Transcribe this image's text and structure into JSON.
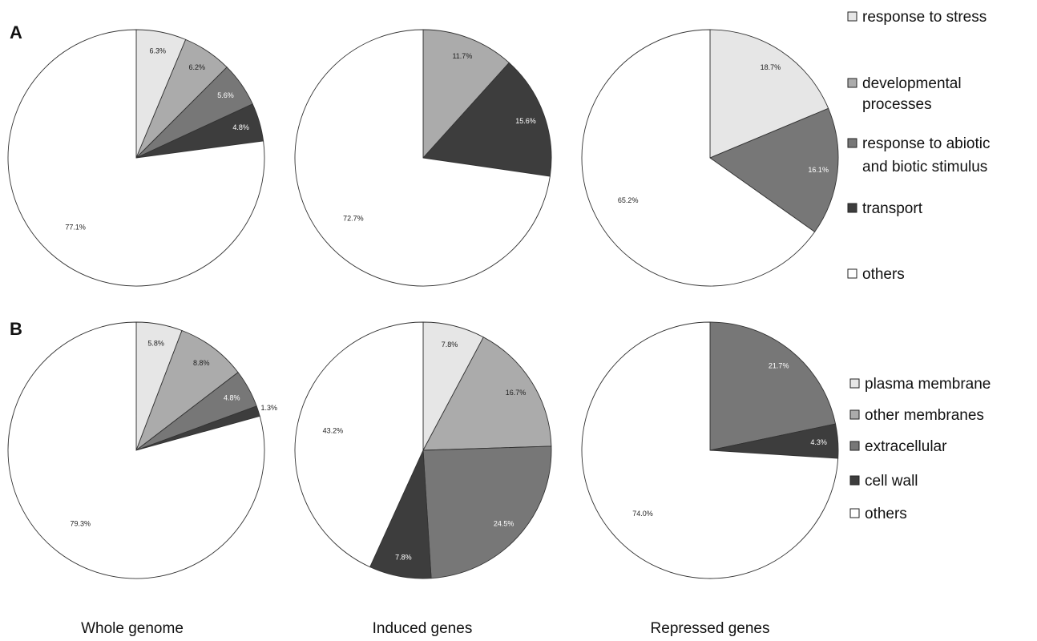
{
  "panels": [
    {
      "letter": "A"
    },
    {
      "letter": "B"
    }
  ],
  "column_labels": [
    "Whole genome",
    "Induced genes",
    "Repressed genes"
  ],
  "colors": {
    "light": "#e6e6e6",
    "mid_light": "#ababab",
    "mid_dark": "#777777",
    "dark": "#3d3d3d",
    "white": "#ffffff",
    "stroke": "#333333"
  },
  "legends": [
    {
      "panel": "A",
      "items": [
        {
          "text": [
            "response to stress"
          ],
          "color": "light"
        },
        {
          "text": [
            "developmental",
            "processes"
          ],
          "color": "mid_light"
        },
        {
          "text": [
            "response to abiotic",
            "and biotic stimulus"
          ],
          "color": "mid_dark"
        },
        {
          "text": [
            "transport"
          ],
          "color": "dark"
        },
        {
          "text": [
            "others"
          ],
          "color": "white"
        }
      ]
    },
    {
      "panel": "B",
      "items": [
        {
          "text": [
            "plasma membrane"
          ],
          "color": "light"
        },
        {
          "text": [
            "other membranes"
          ],
          "color": "mid_light"
        },
        {
          "text": [
            "extracellular"
          ],
          "color": "mid_dark"
        },
        {
          "text": [
            "cell wall"
          ],
          "color": "dark"
        },
        {
          "text": [
            "others"
          ],
          "color": "white"
        }
      ]
    }
  ],
  "chart_data": [
    {
      "type": "pie",
      "panel": "A",
      "column": "Whole genome",
      "slices": [
        {
          "category": "response to stress",
          "value": 6.3,
          "label": "6.3%",
          "color": "light"
        },
        {
          "category": "developmental processes",
          "value": 6.2,
          "label": "6.2%",
          "color": "mid_light"
        },
        {
          "category": "response to abiotic and biotic stimulus",
          "value": 5.6,
          "label": "5.6%",
          "color": "mid_dark"
        },
        {
          "category": "transport",
          "value": 4.8,
          "label": "4.8%",
          "color": "dark"
        },
        {
          "category": "others",
          "value": 77.1,
          "label": "77.1%",
          "color": "white"
        }
      ]
    },
    {
      "type": "pie",
      "panel": "A",
      "column": "Induced genes",
      "slices": [
        {
          "category": "developmental processes",
          "value": 11.7,
          "label": "11.7%",
          "color": "mid_light"
        },
        {
          "category": "transport",
          "value": 15.6,
          "label": "15.6%",
          "color": "dark"
        },
        {
          "category": "others",
          "value": 72.7,
          "label": "72.7%",
          "color": "white"
        }
      ]
    },
    {
      "type": "pie",
      "panel": "A",
      "column": "Repressed genes",
      "slices": [
        {
          "category": "response to stress",
          "value": 18.7,
          "label": "18.7%",
          "color": "light"
        },
        {
          "category": "response to abiotic and biotic stimulus",
          "value": 16.1,
          "label": "16.1%",
          "color": "mid_dark"
        },
        {
          "category": "others",
          "value": 65.2,
          "label": "65.2%",
          "color": "white"
        }
      ]
    },
    {
      "type": "pie",
      "panel": "B",
      "column": "Whole genome",
      "slices": [
        {
          "category": "plasma membrane",
          "value": 5.8,
          "label": "5.8%",
          "color": "light"
        },
        {
          "category": "other membranes",
          "value": 8.8,
          "label": "8.8%",
          "color": "mid_light"
        },
        {
          "category": "extracellular",
          "value": 4.8,
          "label": "4.8%",
          "color": "mid_dark"
        },
        {
          "category": "cell wall",
          "value": 1.3,
          "label": "1.3%",
          "color": "dark"
        },
        {
          "category": "others",
          "value": 79.3,
          "label": "79.3%",
          "color": "white"
        }
      ]
    },
    {
      "type": "pie",
      "panel": "B",
      "column": "Induced genes",
      "slices": [
        {
          "category": "plasma membrane",
          "value": 7.8,
          "label": "7.8%",
          "color": "light"
        },
        {
          "category": "other membranes",
          "value": 16.7,
          "label": "16.7%",
          "color": "mid_light"
        },
        {
          "category": "extracellular",
          "value": 24.5,
          "label": "24.5%",
          "color": "mid_dark"
        },
        {
          "category": "cell wall",
          "value": 7.8,
          "label": "7.8%",
          "color": "dark"
        },
        {
          "category": "others",
          "value": 43.2,
          "label": "43.2%",
          "color": "white"
        }
      ]
    },
    {
      "type": "pie",
      "panel": "B",
      "column": "Repressed genes",
      "slices": [
        {
          "category": "extracellular",
          "value": 21.7,
          "label": "21.7%",
          "color": "mid_dark"
        },
        {
          "category": "cell wall",
          "value": 4.3,
          "label": "4.3%",
          "color": "dark"
        },
        {
          "category": "others",
          "value": 74.0,
          "label": "74.0%",
          "color": "white"
        }
      ]
    }
  ]
}
